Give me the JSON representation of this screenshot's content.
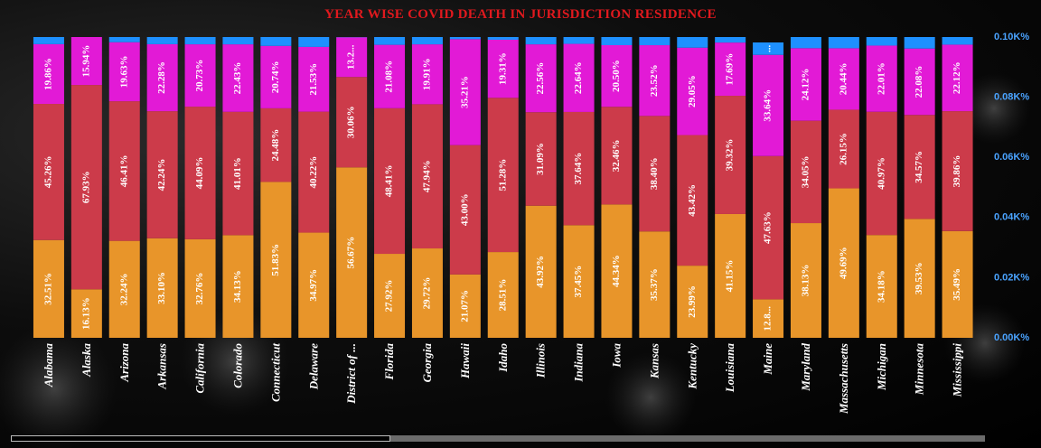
{
  "chart_data": {
    "type": "bar",
    "title": "YEAR WISE COVID DEATH IN JURISDICTION RESIDENCE",
    "categories": [
      "Alabama",
      "Alaska",
      "Arizona",
      "Arkansas",
      "California",
      "Colorado",
      "Connecticut",
      "Delaware",
      "District of ...",
      "Florida",
      "Georgia",
      "Hawaii",
      "Idaho",
      "Illinois",
      "Indiana",
      "Iowa",
      "Kansas",
      "Kentucky",
      "Louisiana",
      "Maine",
      "Maryland",
      "Massachusetts",
      "Michigan",
      "Minnesota",
      "Mississippi"
    ],
    "series": [
      {
        "color": "#e8952a",
        "labels": [
          "32.51%",
          "16.13%",
          "32.24%",
          "33.10%",
          "32.76%",
          "34.13%",
          "51.83%",
          "34.97%",
          "56.67%",
          "27.92%",
          "29.72%",
          "21.07%",
          "28.51%",
          "43.92%",
          "37.45%",
          "44.34%",
          "35.37%",
          "23.99%",
          "41.15%",
          "12.8...",
          "38.13%",
          "49.69%",
          "34.18%",
          "39.53%",
          "35.49%"
        ],
        "values": [
          32.51,
          16.13,
          32.24,
          33.1,
          32.76,
          34.13,
          51.83,
          34.97,
          56.67,
          27.92,
          29.72,
          21.07,
          28.51,
          43.92,
          37.45,
          44.34,
          35.37,
          23.99,
          41.15,
          12.8,
          38.13,
          49.69,
          34.18,
          39.53,
          35.49
        ]
      },
      {
        "color": "#cc3b4a",
        "labels": [
          "45.26%",
          "67.93%",
          "46.41%",
          "42.24%",
          "44.09%",
          "41.01%",
          "24.48%",
          "40.22%",
          "30.06%",
          "48.41%",
          "47.94%",
          "43.00%",
          "51.28%",
          "31.09%",
          "37.64%",
          "32.46%",
          "38.40%",
          "43.42%",
          "39.32%",
          "47.63%",
          "34.05%",
          "26.15%",
          "40.97%",
          "34.57%",
          "39.86%"
        ],
        "values": [
          45.26,
          67.93,
          46.41,
          42.24,
          44.09,
          41.01,
          24.48,
          40.22,
          30.06,
          48.41,
          47.94,
          43.0,
          51.28,
          31.09,
          37.64,
          32.46,
          38.4,
          43.42,
          39.32,
          47.63,
          34.05,
          26.15,
          40.97,
          34.57,
          39.86
        ]
      },
      {
        "color": "#e21ad6",
        "labels": [
          "19.86%",
          "15.94%",
          "19.63%",
          "22.28%",
          "20.73%",
          "22.43%",
          "20.74%",
          "21.53%",
          "13.2...",
          "21.08%",
          "19.91%",
          "35.21%",
          "19.31%",
          "22.56%",
          "22.64%",
          "20.50%",
          "23.52%",
          "29.05%",
          "17.69%",
          "33.64%",
          "24.12%",
          "20.44%",
          "22.01%",
          "22.08%",
          "22.12%"
        ],
        "values": [
          19.86,
          15.94,
          19.63,
          22.28,
          20.73,
          22.43,
          20.74,
          21.53,
          13.2,
          21.08,
          19.91,
          35.21,
          19.31,
          22.56,
          22.64,
          20.5,
          23.52,
          29.05,
          17.69,
          33.64,
          24.12,
          20.44,
          22.01,
          22.08,
          22.12
        ]
      },
      {
        "color": "#1e90ff",
        "labels": [
          "",
          "",
          "",
          "",
          "",
          "",
          "",
          "",
          "",
          "",
          "",
          "",
          "",
          "",
          "",
          "",
          "",
          "",
          "",
          "...",
          "",
          "",
          "",
          "",
          ""
        ],
        "values": [
          2.37,
          0.0,
          1.72,
          2.38,
          2.42,
          2.43,
          2.95,
          3.28,
          0.07,
          2.59,
          2.43,
          0.72,
          0.9,
          2.43,
          2.27,
          2.7,
          2.71,
          3.54,
          1.84,
          4.13,
          3.7,
          3.72,
          2.84,
          3.82,
          2.53
        ]
      }
    ],
    "yaxis": {
      "ticks": [
        "0.00K%",
        "0.02K%",
        "0.04K%",
        "0.06K%",
        "0.08K%",
        "0.10K%"
      ],
      "min": 0,
      "max": 100,
      "position": "right"
    },
    "grid": false,
    "legend": "none"
  }
}
